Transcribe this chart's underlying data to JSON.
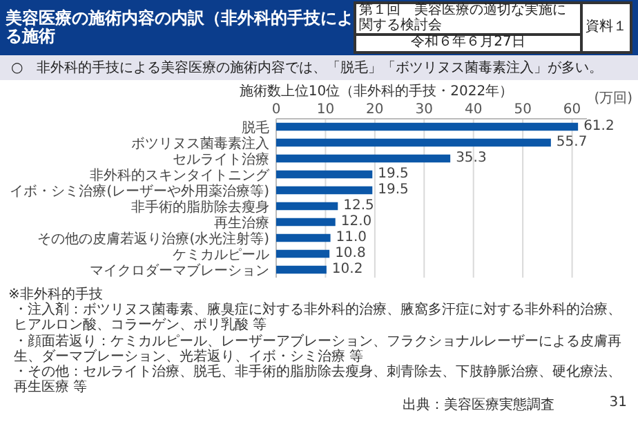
{
  "chart_data": {
    "type": "bar",
    "orientation": "horizontal",
    "title": "施術数上位10位（非外科的手技・2022年）",
    "xlabel": "(万回)",
    "categories": [
      "脱毛",
      "ボツリヌス菌毒素注入",
      "セルライト治療",
      "非外科的スキンタイトニング",
      "イボ・シミ治療(レーザーや外用薬治療等)",
      "非手術的脂肪除去瘦身",
      "再生治療",
      "その他の皮膚若返り治療(水光注射等)",
      "ケミカルピール",
      "マイクロダーマブレーション"
    ],
    "series": [
      {
        "color": "#0b57a8",
        "values": [
          61.2,
          55.7,
          35.3,
          19.5,
          19.5,
          12.5,
          12.0,
          11.0,
          10.8,
          10.2
        ]
      }
    ],
    "value_labels": [
      "61.2",
      "55.7",
      "35.3",
      "19.5",
      "19.5",
      "12.5",
      "12.0",
      "11.0",
      "10.8",
      "10.2"
    ],
    "xlim": [
      0,
      63
    ],
    "xticks": [
      0,
      10,
      20,
      30,
      40,
      50,
      60
    ],
    "grid": "x",
    "annotations": [
      "美容医療の施術内容の内訳（非外科的手技による施術",
      "第１回　美容医療の適切な実施に関する検討会",
      "令和６年６月27日",
      "資料１",
      "○　非外科的手技による美容医療の施術内容では、「脱毛」「ボツリヌス菌毒素注入」が多い。",
      "※非外科的手技",
      "・注入剤：ボツリヌス菌毒素、腋臭症に対する非外科的治療、腋窩多汗症に対する非外科的治療、ヒアルロン酸、コラーゲン、ポリ乳酸 等",
      "・顔面若返り：ケミカルピール、レーザーアブレーション、フラクショナルレーザーによる皮膚再生、ダーマブレーション、光若返り、イボ・シミ治療 等",
      "・その他：セルライト治療、脱毛、非手術的脂肪除去瘦身、刺青除去、下肢静脈治療、硬化療法、再生医療 等",
      "出典：美容医療実態調査",
      "31"
    ]
  }
}
